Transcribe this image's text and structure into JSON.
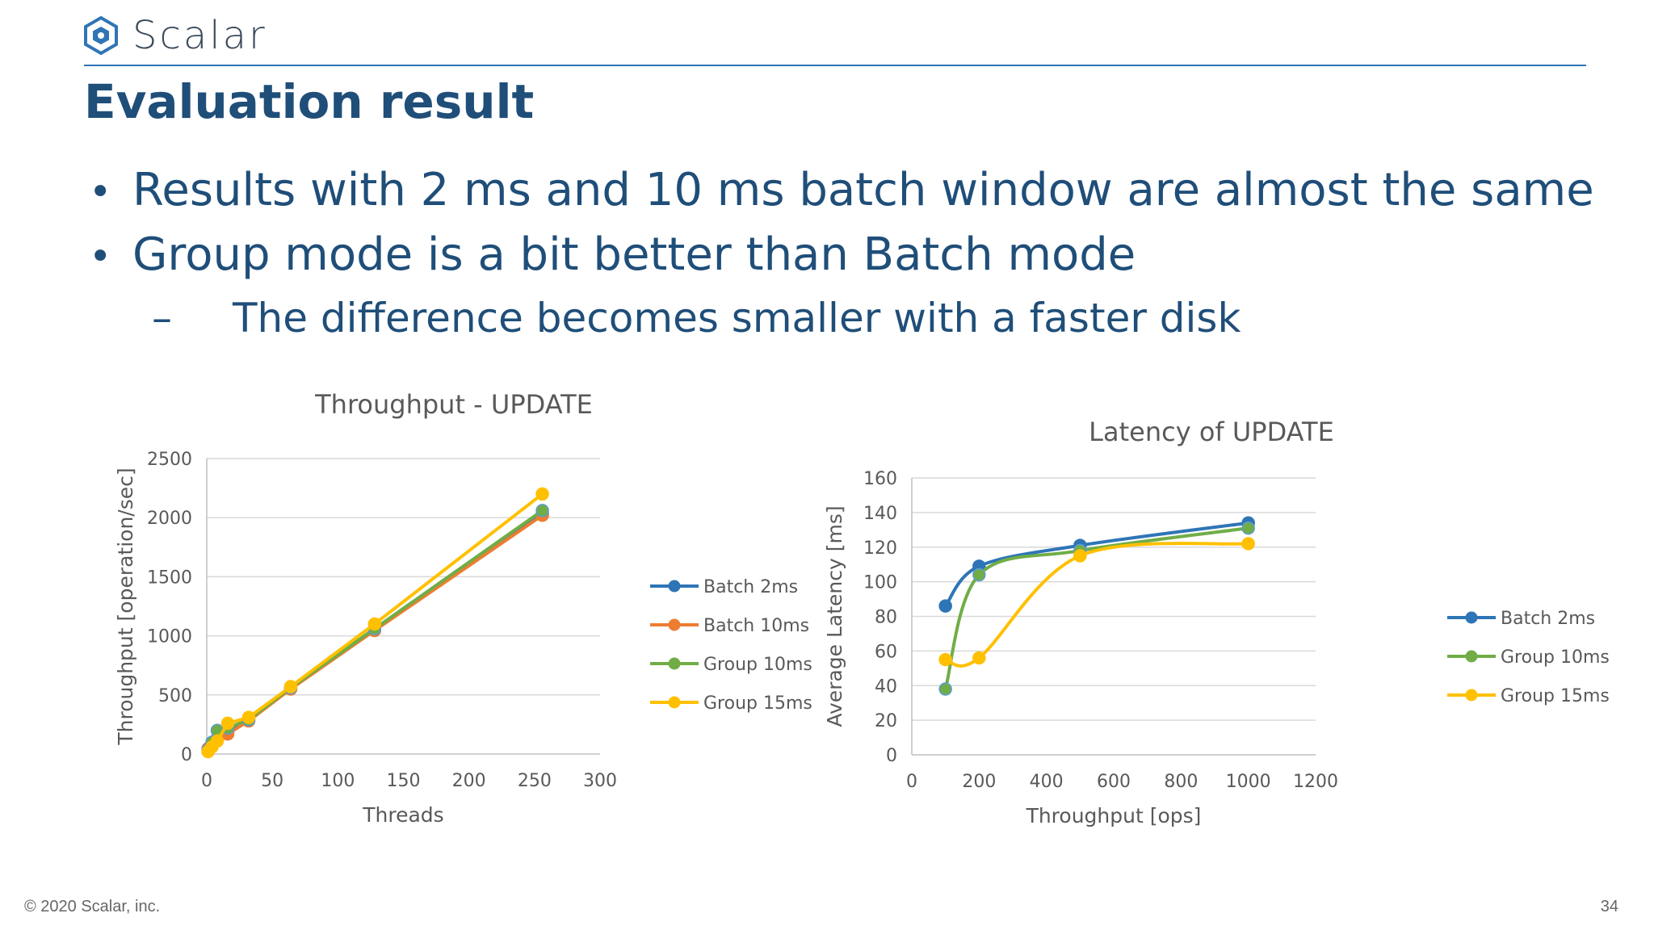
{
  "brand": {
    "name": "Scalar",
    "logo_icon": "scalar-hexagon-icon",
    "color": "#1f4e79"
  },
  "slide": {
    "title": "Evaluation result",
    "bullets": [
      "Results with 2 ms and 10 ms batch window are almost the same",
      "Group mode is a bit better than Batch mode"
    ],
    "sub_bullet": "The difference becomes smaller with a faster disk",
    "dash": "–",
    "bullet_glyph": "•"
  },
  "footer": {
    "copyright": "© 2020 Scalar, inc.",
    "page_number": "34"
  },
  "chart_data": [
    {
      "type": "line",
      "title": "Throughput - UPDATE",
      "xlabel": "Threads",
      "ylabel": "Throughput [operation/sec]",
      "xlim": [
        0,
        300
      ],
      "ylim": [
        0,
        2500
      ],
      "xticks": [
        0,
        50,
        100,
        150,
        200,
        250,
        300
      ],
      "yticks": [
        0,
        500,
        1000,
        1500,
        2000,
        2500
      ],
      "grid": true,
      "legend_position": "right",
      "series": [
        {
          "name": "Batch 2ms",
          "color": "#2e75b6",
          "x": [
            1,
            4,
            8,
            16,
            32,
            64,
            128,
            256
          ],
          "y": [
            45,
            80,
            130,
            190,
            290,
            555,
            1050,
            2030
          ]
        },
        {
          "name": "Batch 10ms",
          "color": "#ed7d31",
          "x": [
            1,
            4,
            8,
            16,
            32,
            64,
            128,
            256
          ],
          "y": [
            40,
            75,
            120,
            170,
            280,
            550,
            1045,
            2020
          ]
        },
        {
          "name": "Group 10ms",
          "color": "#70ad47",
          "x": [
            1,
            4,
            8,
            16,
            32,
            64,
            128,
            256
          ],
          "y": [
            30,
            100,
            200,
            220,
            290,
            560,
            1060,
            2060
          ]
        },
        {
          "name": "Group 15ms",
          "color": "#ffc000",
          "x": [
            1,
            4,
            8,
            16,
            32,
            64,
            128,
            256
          ],
          "y": [
            20,
            60,
            110,
            260,
            310,
            570,
            1100,
            2200
          ]
        }
      ]
    },
    {
      "type": "line",
      "title": "Latency of UPDATE",
      "xlabel": "Throughput [ops]",
      "ylabel": "Average Latency [ms]",
      "xlim": [
        0,
        1200
      ],
      "ylim": [
        0,
        160
      ],
      "xticks": [
        0,
        200,
        400,
        600,
        800,
        1000,
        1200
      ],
      "yticks": [
        0,
        20,
        40,
        60,
        80,
        100,
        120,
        140,
        160
      ],
      "grid": true,
      "legend_position": "right",
      "series": [
        {
          "name": "Batch 2ms",
          "color": "#2e75b6",
          "x": [
            100,
            200,
            500,
            1000
          ],
          "y": [
            86,
            109,
            121,
            134
          ]
        },
        {
          "name": "Group 10ms",
          "color": "#70ad47",
          "x": [
            100,
            200,
            500,
            1000
          ],
          "y": [
            38,
            104,
            118,
            131
          ]
        },
        {
          "name": "Group 15ms",
          "color": "#ffc000",
          "x": [
            100,
            200,
            500,
            1000
          ],
          "y": [
            55,
            56,
            115,
            122
          ]
        }
      ]
    }
  ]
}
